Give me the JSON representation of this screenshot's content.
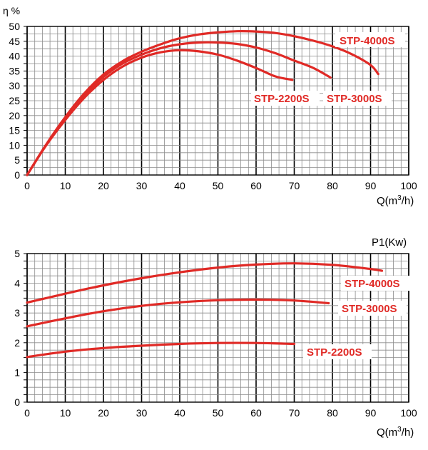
{
  "colors": {
    "curve": "#e02a26",
    "grid_minor": "#8c8c8c",
    "grid_major": "#000000",
    "label_text": "#e02a26",
    "axis_text": "#000000"
  },
  "chart_data": [
    {
      "type": "line",
      "ylabel": "η %",
      "xlabel": "Q(m³/h)",
      "xlim": [
        0,
        100
      ],
      "ylim": [
        0,
        50
      ],
      "xticks": [
        "0",
        "10",
        "20",
        "30",
        "40",
        "50",
        "60",
        "70",
        "80",
        "90",
        "100"
      ],
      "yticks": [
        "0",
        "5",
        "10",
        "15",
        "20",
        "25",
        "30",
        "35",
        "40",
        "45",
        "50"
      ],
      "grid": true,
      "series": [
        {
          "name": "STP-2200S",
          "x": [
            0,
            5,
            10,
            15,
            20,
            25,
            30,
            35,
            40,
            45,
            50,
            55,
            60,
            65,
            69.5
          ],
          "y": [
            0,
            10,
            18.5,
            26,
            32,
            36.5,
            39.5,
            41.3,
            42,
            41.6,
            40.5,
            38.5,
            36,
            33.2,
            32
          ]
        },
        {
          "name": "STP-3000S",
          "x": [
            0,
            5,
            10,
            15,
            20,
            25,
            30,
            35,
            40,
            45,
            50,
            55,
            60,
            65,
            70,
            75,
            79.5
          ],
          "y": [
            0,
            10.2,
            19,
            26.8,
            33,
            37.5,
            40.5,
            42.7,
            44,
            44.6,
            44.6,
            44.1,
            42.9,
            41,
            38.5,
            36,
            32.8
          ]
        },
        {
          "name": "STP-4000S",
          "x": [
            0,
            5,
            10,
            15,
            20,
            25,
            30,
            35,
            40,
            45,
            50,
            55,
            60,
            65,
            70,
            75,
            80,
            85,
            90,
            92
          ],
          "y": [
            0,
            10.3,
            19.5,
            27.5,
            33.8,
            38.3,
            41.5,
            44,
            46,
            47.3,
            48,
            48.4,
            48.3,
            47.8,
            46.7,
            45.2,
            43.3,
            40.7,
            37,
            34
          ]
        }
      ],
      "labels": [
        "STP-4000S",
        "STP-2200S",
        "STP-3000S"
      ]
    },
    {
      "type": "line",
      "ylabel": "P1(Kw)",
      "xlabel": "Q(m³/h)",
      "xlim": [
        0,
        100
      ],
      "ylim": [
        0,
        5
      ],
      "xticks": [
        "0",
        "10",
        "20",
        "30",
        "40",
        "50",
        "60",
        "70",
        "80",
        "90",
        "100"
      ],
      "yticks": [
        "0",
        "1",
        "2",
        "3",
        "4",
        "5"
      ],
      "grid": true,
      "series": [
        {
          "name": "STP-4000S",
          "x": [
            0,
            10,
            20,
            30,
            40,
            50,
            60,
            70,
            80,
            90,
            93
          ],
          "y": [
            3.35,
            3.65,
            3.93,
            4.17,
            4.37,
            4.53,
            4.63,
            4.67,
            4.62,
            4.48,
            4.42
          ]
        },
        {
          "name": "STP-3000S",
          "x": [
            0,
            10,
            20,
            30,
            40,
            50,
            60,
            70,
            79
          ],
          "y": [
            2.55,
            2.82,
            3.06,
            3.24,
            3.36,
            3.43,
            3.45,
            3.42,
            3.33
          ]
        },
        {
          "name": "STP-2200S",
          "x": [
            0,
            10,
            20,
            30,
            40,
            50,
            60,
            70
          ],
          "y": [
            1.52,
            1.7,
            1.82,
            1.9,
            1.96,
            1.99,
            1.99,
            1.96
          ]
        }
      ],
      "labels": [
        "STP-4000S",
        "STP-3000S",
        "STP-2200S"
      ]
    }
  ]
}
